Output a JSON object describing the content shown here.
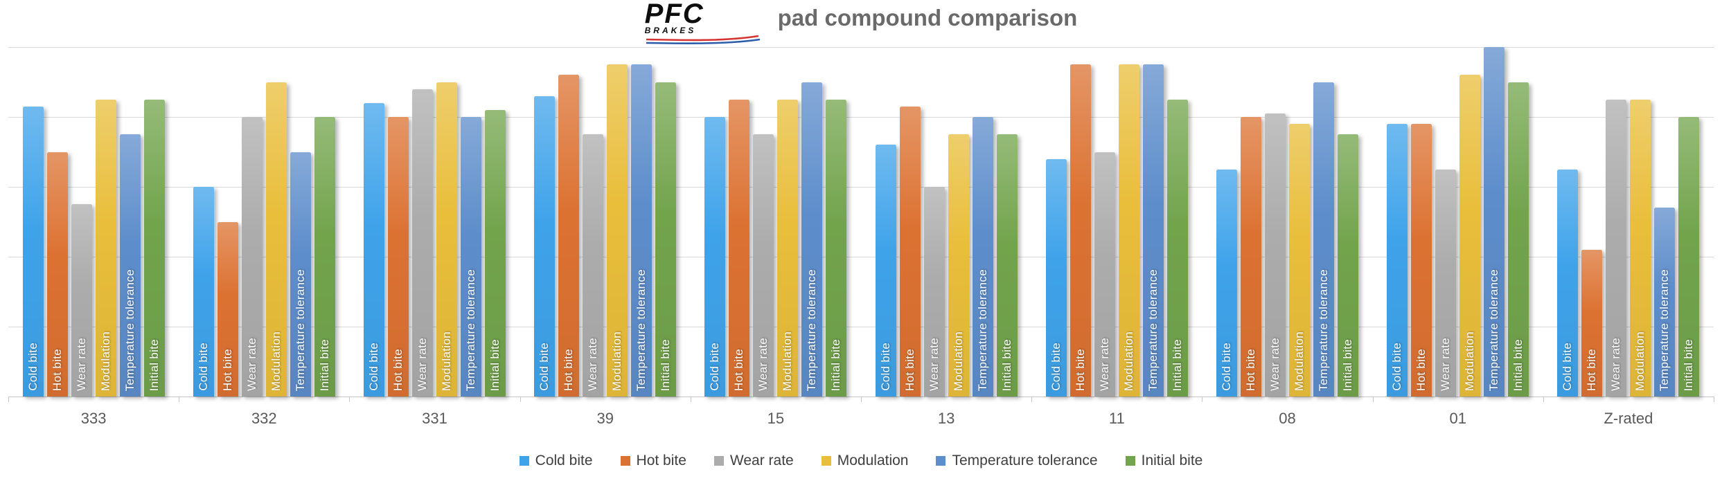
{
  "header": {
    "logo_main": "PFC",
    "logo_sub": "BRAKES",
    "title": "pad compound comparison"
  },
  "chart_data": {
    "type": "bar",
    "title": "pad compound comparison",
    "categories": [
      "333",
      "332",
      "331",
      "39",
      "15",
      "13",
      "11",
      "08",
      "01",
      "Z-rated"
    ],
    "series": [
      {
        "name": "Cold bite",
        "color": "#3fa3ea",
        "values": [
          8.3,
          6.0,
          8.4,
          8.6,
          8.0,
          7.2,
          6.8,
          6.5,
          7.8,
          6.5
        ]
      },
      {
        "name": "Hot bite",
        "color": "#dc7232",
        "values": [
          7.0,
          5.0,
          8.0,
          9.2,
          8.5,
          8.3,
          9.5,
          8.0,
          7.8,
          4.2
        ]
      },
      {
        "name": "Wear rate",
        "color": "#acacac",
        "values": [
          5.5,
          8.0,
          8.8,
          7.5,
          7.5,
          6.0,
          7.0,
          8.1,
          6.5,
          8.5
        ]
      },
      {
        "name": "Modulation",
        "color": "#e9be3b",
        "values": [
          8.5,
          9.0,
          9.0,
          9.5,
          8.5,
          7.5,
          9.5,
          7.8,
          9.2,
          8.5
        ]
      },
      {
        "name": "Temperature tolerance",
        "color": "#5d8dcb",
        "values": [
          7.5,
          7.0,
          8.0,
          9.5,
          9.0,
          8.0,
          9.5,
          9.0,
          10.0,
          5.4
        ]
      },
      {
        "name": "Initial bite",
        "color": "#72a44c",
        "values": [
          8.5,
          8.0,
          8.2,
          9.0,
          8.5,
          7.5,
          8.5,
          7.5,
          9.0,
          8.0
        ]
      }
    ],
    "xlabel": "",
    "ylabel": "",
    "ylim": [
      0,
      10
    ],
    "gridline_interval": 2,
    "grid": true,
    "y_axis_labels_visible": false,
    "legend_position": "bottom",
    "bar_label_style": "series name rotated 90deg, white, inside bar base"
  },
  "colors": {
    "gridline": "#d9d9d9",
    "axis": "#c6c6c6",
    "title_text": "#6a6a6a",
    "category_text": "#595959",
    "legend_text": "#3f3f3f",
    "bar_label_text": "#ffffff",
    "logo_black": "#0d0d0d",
    "logo_red": "#d63333",
    "logo_blue": "#2a5caa"
  }
}
